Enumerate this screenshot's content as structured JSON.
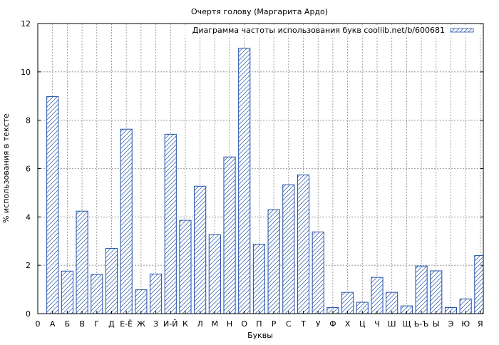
{
  "chart_data": {
    "type": "bar",
    "title": "Очертя голову (Маргарита Ардо)",
    "xlabel": "Буквы",
    "ylabel": "% использования в тексте",
    "ylim": [
      0,
      12
    ],
    "yticks": [
      0,
      2,
      4,
      6,
      8,
      10,
      12
    ],
    "x_start_label": "0",
    "grid": true,
    "legend_position": "top-right",
    "colors": {
      "bar_stroke": "#1f4fa8",
      "grid": "#888888",
      "background": "#ffffff"
    },
    "categories": [
      "А",
      "Б",
      "В",
      "Г",
      "Д",
      "Е-Ё",
      "Ж",
      "З",
      "И-Й",
      "К",
      "Л",
      "М",
      "Н",
      "О",
      "П",
      "Р",
      "С",
      "Т",
      "У",
      "Ф",
      "Х",
      "Ц",
      "Ч",
      "Ш",
      "Щ",
      "Ь-Ъ",
      "Ы",
      "Э",
      "Ю",
      "Я"
    ],
    "series": [
      {
        "name": "Диаграмма частоты использования букв coollib.net/b/600681",
        "values": [
          8.98,
          1.76,
          4.24,
          1.62,
          2.7,
          7.63,
          0.99,
          1.64,
          7.42,
          3.86,
          5.27,
          3.27,
          6.48,
          10.98,
          2.87,
          4.3,
          5.33,
          5.74,
          3.38,
          0.25,
          0.88,
          0.47,
          1.5,
          0.88,
          0.32,
          1.97,
          1.77,
          0.25,
          0.61,
          2.4
        ]
      }
    ]
  }
}
